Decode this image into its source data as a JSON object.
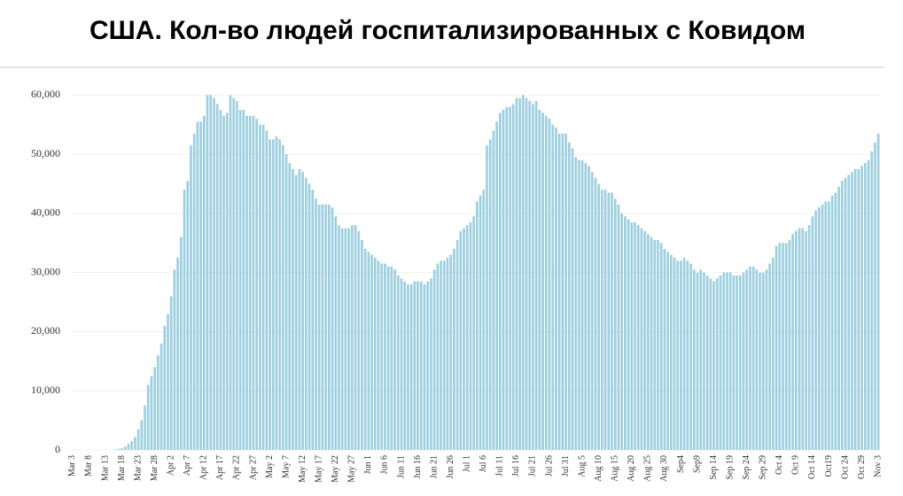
{
  "chart_data": {
    "type": "bar",
    "title": "США. Кол-во людей госпитализированных с Ковидом",
    "categories": [
      "Mar 3",
      null,
      null,
      null,
      null,
      "Mar 8",
      null,
      null,
      null,
      null,
      "Mar 13",
      null,
      null,
      null,
      null,
      "Mar 18",
      null,
      null,
      null,
      null,
      "Mar 23",
      null,
      null,
      null,
      null,
      "Mar 28",
      null,
      null,
      null,
      null,
      "Apr 2",
      null,
      null,
      null,
      null,
      "Apr 7",
      null,
      null,
      null,
      null,
      "Apr 12",
      null,
      null,
      null,
      null,
      "Apr 17",
      null,
      null,
      null,
      null,
      "Apr 22",
      null,
      null,
      null,
      null,
      "Apr 27",
      null,
      null,
      null,
      null,
      "May 2",
      null,
      null,
      null,
      null,
      "May 7",
      null,
      null,
      null,
      null,
      "May 12",
      null,
      null,
      null,
      null,
      "May 17",
      null,
      null,
      null,
      null,
      "May 22",
      null,
      null,
      null,
      null,
      "May 27",
      null,
      null,
      null,
      null,
      "Jun 1",
      null,
      null,
      null,
      null,
      "Jun 6",
      null,
      null,
      null,
      null,
      "Jun 11",
      null,
      null,
      null,
      null,
      "Jun 16",
      null,
      null,
      null,
      null,
      "Jun 21",
      null,
      null,
      null,
      null,
      "Jun 26",
      null,
      null,
      null,
      null,
      "Jul 1",
      null,
      null,
      null,
      null,
      "Jul 6",
      null,
      null,
      null,
      null,
      "Jul 11",
      null,
      null,
      null,
      null,
      "Jul 16",
      null,
      null,
      null,
      null,
      "Jul 21",
      null,
      null,
      null,
      null,
      "Jul 26",
      null,
      null,
      null,
      null,
      "Jul 31",
      null,
      null,
      null,
      null,
      "Aug 5",
      null,
      null,
      null,
      null,
      "Aug 10",
      null,
      null,
      null,
      null,
      "Aug 15",
      null,
      null,
      null,
      null,
      "Aug 20",
      null,
      null,
      null,
      null,
      "Aug 25",
      null,
      null,
      null,
      null,
      "Aug 30",
      null,
      null,
      null,
      null,
      "Sep4",
      null,
      null,
      null,
      null,
      "Sep9",
      null,
      null,
      null,
      null,
      "Sep 14",
      null,
      null,
      null,
      null,
      "Sep 19",
      null,
      null,
      null,
      null,
      "Sep 24",
      null,
      null,
      null,
      null,
      "Sep 29",
      null,
      null,
      null,
      null,
      "Oct 4",
      null,
      null,
      null,
      null,
      "Oct 9",
      null,
      null,
      null,
      null,
      "Oct 14",
      null,
      null,
      null,
      null,
      "Oct19",
      null,
      null,
      null,
      null,
      "Oct 24",
      null,
      null,
      null,
      null,
      "Oct 29",
      null,
      null,
      null,
      null,
      "Nov 3"
    ],
    "values": [
      0,
      0,
      0,
      0,
      0,
      0,
      0,
      0,
      0,
      0,
      0,
      0,
      0,
      100,
      200,
      300,
      600,
      1000,
      1500,
      2200,
      3500,
      5000,
      7500,
      11000,
      12500,
      14000,
      16000,
      18000,
      21000,
      23000,
      26000,
      30500,
      32500,
      36000,
      44000,
      45500,
      51500,
      53500,
      55500,
      55500,
      56500,
      60000,
      60000,
      59500,
      58500,
      57500,
      56500,
      57000,
      60000,
      59500,
      59000,
      57500,
      57500,
      56500,
      56500,
      56500,
      56000,
      55000,
      55000,
      54000,
      52500,
      52500,
      53000,
      52500,
      51500,
      50000,
      48500,
      47500,
      46500,
      47500,
      47000,
      46000,
      45000,
      44000,
      42500,
      41500,
      41500,
      41500,
      41500,
      41000,
      39500,
      38000,
      37500,
      37500,
      37500,
      38000,
      38000,
      37000,
      35500,
      34000,
      33500,
      33000,
      32500,
      32000,
      31500,
      31500,
      31000,
      31000,
      30500,
      29500,
      29000,
      28500,
      28000,
      28000,
      28500,
      28500,
      28500,
      28000,
      28500,
      29000,
      30500,
      31500,
      32000,
      32000,
      32500,
      33000,
      34000,
      35500,
      37000,
      37500,
      38000,
      38500,
      39500,
      42000,
      43000,
      44000,
      51500,
      52500,
      54000,
      55500,
      57000,
      57500,
      58000,
      58000,
      58500,
      59500,
      59500,
      60000,
      59500,
      59000,
      58500,
      59000,
      57500,
      57000,
      56500,
      56000,
      55000,
      54500,
      53500,
      53500,
      53500,
      52000,
      51000,
      49500,
      49000,
      49000,
      48500,
      48000,
      47000,
      46000,
      45000,
      44000,
      44000,
      43500,
      43500,
      42500,
      41500,
      40000,
      39500,
      39000,
      38500,
      38500,
      38000,
      37500,
      37000,
      36500,
      36000,
      35500,
      35500,
      35000,
      34000,
      33500,
      33000,
      32500,
      32000,
      32000,
      32500,
      32000,
      31500,
      30500,
      30000,
      30500,
      30000,
      29500,
      29000,
      28500,
      29000,
      29500,
      30000,
      30000,
      30000,
      29500,
      29500,
      29500,
      30000,
      30500,
      31000,
      31000,
      30500,
      30000,
      30000,
      30500,
      31500,
      32500,
      34500,
      35000,
      35000,
      35000,
      35500,
      36500,
      37000,
      37500,
      37500,
      37000,
      38000,
      39500,
      40500,
      41000,
      41500,
      42000,
      42000,
      43000,
      43500,
      44500,
      45500,
      46000,
      46500,
      47000,
      47500,
      47500,
      48000,
      48500,
      49000,
      50500,
      52000,
      53500
    ],
    "color": "#9ecfe0",
    "ylim": [
      0,
      62000
    ],
    "yticks": [
      0,
      {
        "value": 10000,
        "label": "10,000"
      },
      {
        "value": 20000,
        "label": "20,000"
      },
      {
        "value": 30000,
        "label": "30,000"
      },
      {
        "value": 40000,
        "label": "40,000"
      },
      {
        "value": 50000,
        "label": "50,000"
      },
      {
        "value": 60000,
        "label": "60,000"
      }
    ],
    "grid": true
  }
}
